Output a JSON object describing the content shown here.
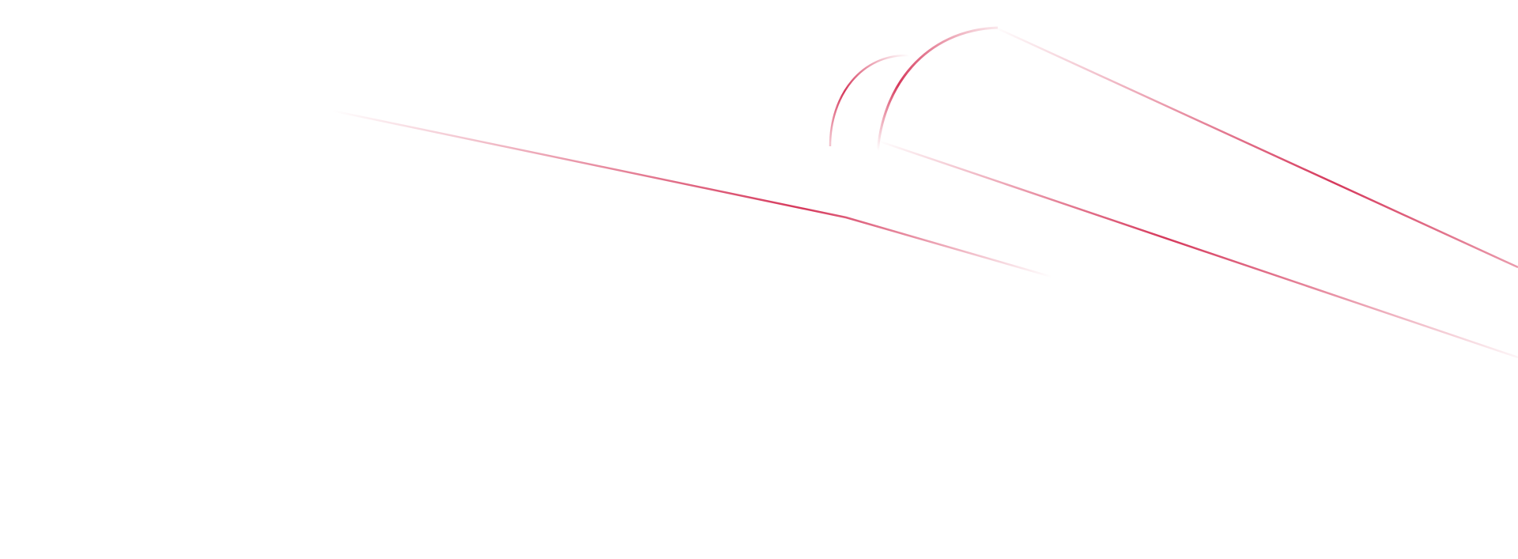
{
  "decoration": {
    "accent_color": "#d6395c"
  }
}
